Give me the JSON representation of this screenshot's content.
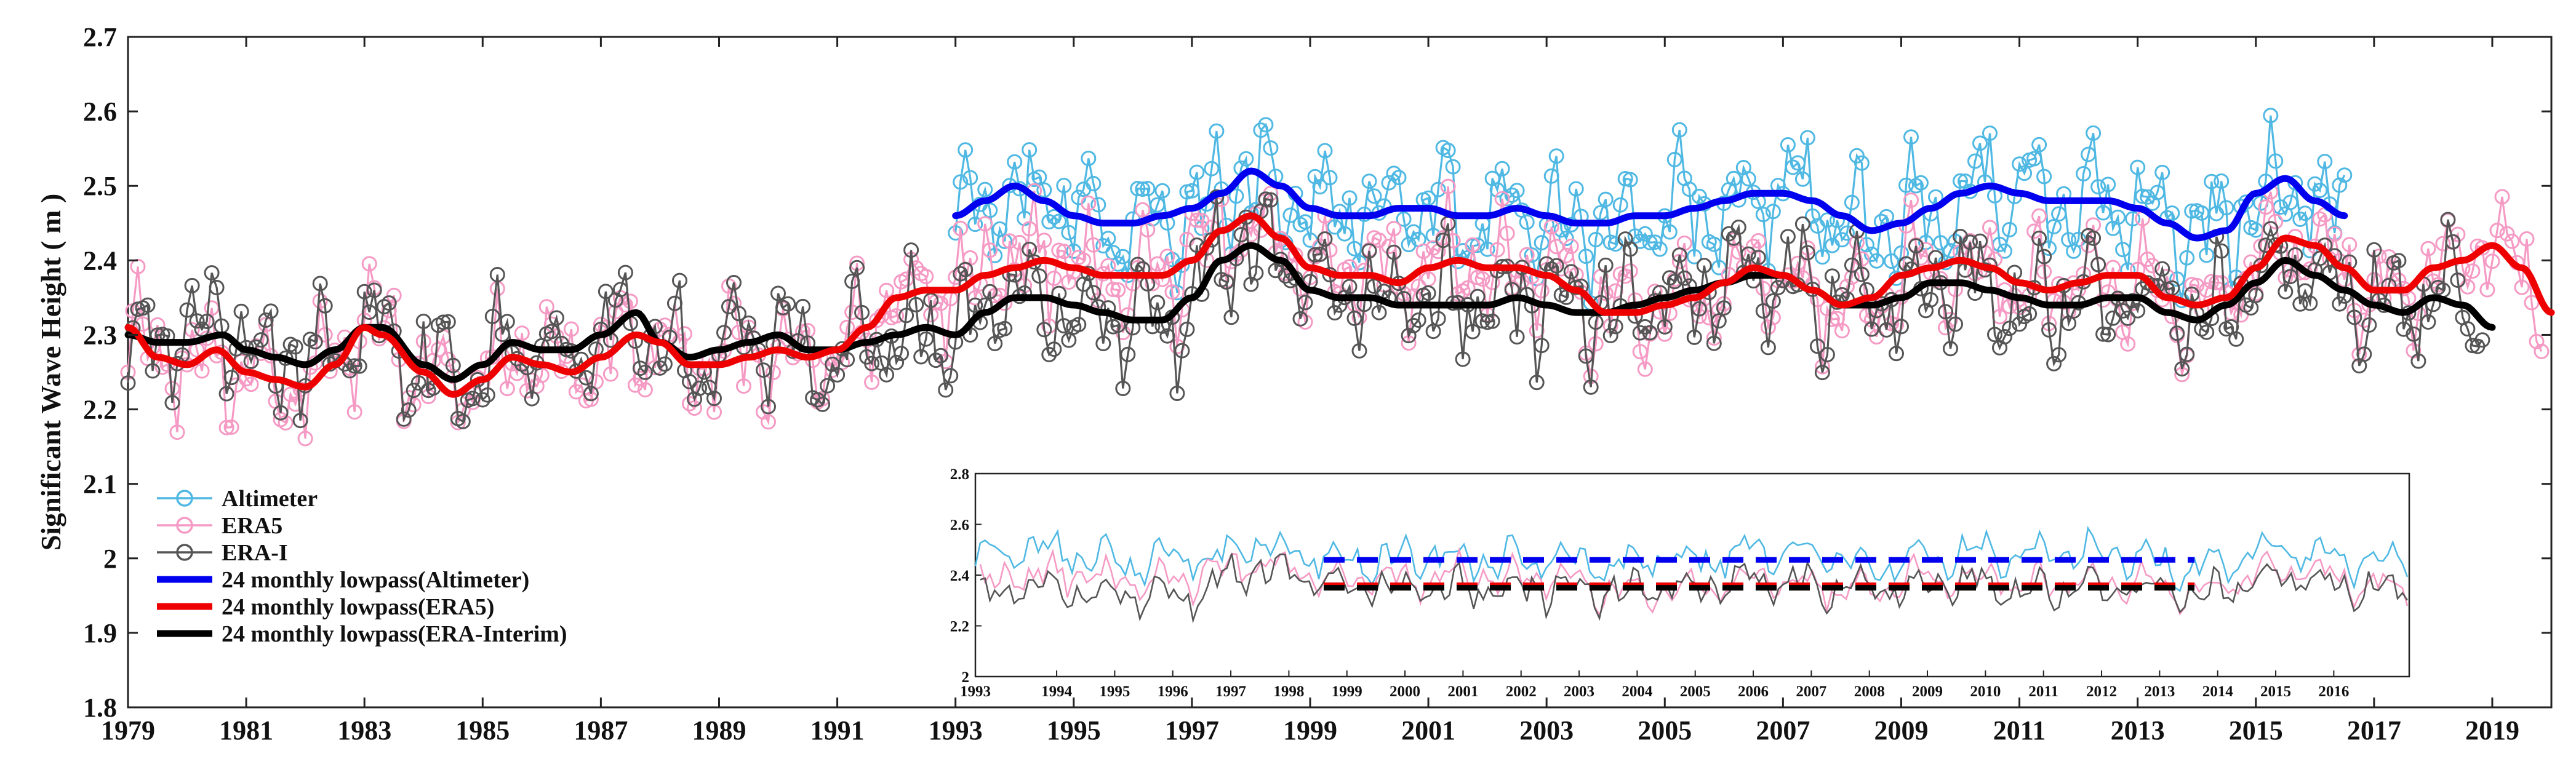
{
  "chart_data": [
    {
      "id": "main",
      "type": "line",
      "title": "",
      "xlabel": "",
      "ylabel": "Significant Wave Height ( m )",
      "xlim": [
        1979,
        2020
      ],
      "ylim": [
        1.8,
        2.7
      ],
      "grid": false,
      "legend_position": "bottom-left",
      "x_ticks": [
        "1979",
        "1981",
        "1983",
        "1985",
        "1987",
        "1989",
        "1991",
        "1993",
        "1995",
        "1997",
        "1999",
        "2001",
        "2003",
        "2005",
        "2007",
        "2009",
        "2011",
        "2013",
        "2015",
        "2017",
        "2019"
      ],
      "y_ticks": [
        "1.8",
        "1.9",
        "2",
        "2.1",
        "2.2",
        "2.3",
        "2.4",
        "2.5",
        "2.6",
        "2.7"
      ],
      "legend": [
        {
          "label": "Altimeter",
          "color": "#4fb8e3",
          "style": "line-marker"
        },
        {
          "label": "ERA5",
          "color": "#f59ac4",
          "style": "line-marker"
        },
        {
          "label": "ERA-I",
          "color": "#555555",
          "style": "line-marker"
        },
        {
          "label": "24 monthly lowpass(Altimeter)",
          "color": "#0000ee",
          "style": "thick-line"
        },
        {
          "label": "24 monthly lowpass(ERA5)",
          "color": "#ee0000",
          "style": "thick-line"
        },
        {
          "label": "24 monthly lowpass(ERA-Interim)",
          "color": "#000000",
          "style": "thick-line"
        }
      ],
      "series": [
        {
          "name": "24 monthly lowpass(ERA-Interim)",
          "color": "#000000",
          "kind": "smooth",
          "x": [
            1979,
            1979.5,
            1980,
            1980.6,
            1981,
            1981.5,
            1982,
            1982.5,
            1983,
            1983.3,
            1984,
            1984.5,
            1985,
            1985.5,
            1986,
            1986.5,
            1987,
            1987.6,
            1988,
            1988.5,
            1989,
            1989.5,
            1990,
            1990.5,
            1991,
            1991.5,
            1992,
            1992.5,
            1993,
            1993.5,
            1994,
            1994.5,
            1995,
            1995.5,
            1996,
            1996.5,
            1997,
            1997.5,
            1998,
            1998.5,
            1999,
            1999.5,
            2000,
            2000.5,
            2001,
            2001.5,
            2002,
            2002.5,
            2003,
            2003.5,
            2004,
            2004.5,
            2005,
            2005.5,
            2006,
            2006.5,
            2007,
            2007.5,
            2008,
            2008.5,
            2009,
            2009.5,
            2010,
            2010.5,
            2011,
            2011.5,
            2012,
            2012.5,
            2013,
            2013.5,
            2014,
            2014.5,
            2015,
            2015.5,
            2016,
            2016.5,
            2017,
            2017.5,
            2018,
            2018.5,
            2019
          ],
          "y": [
            2.3,
            2.29,
            2.29,
            2.3,
            2.28,
            2.27,
            2.26,
            2.28,
            2.31,
            2.31,
            2.26,
            2.24,
            2.26,
            2.29,
            2.28,
            2.28,
            2.3,
            2.33,
            2.29,
            2.27,
            2.28,
            2.29,
            2.3,
            2.28,
            2.28,
            2.29,
            2.3,
            2.31,
            2.3,
            2.33,
            2.35,
            2.35,
            2.34,
            2.33,
            2.32,
            2.32,
            2.35,
            2.4,
            2.42,
            2.4,
            2.36,
            2.35,
            2.35,
            2.34,
            2.34,
            2.34,
            2.34,
            2.35,
            2.34,
            2.33,
            2.33,
            2.34,
            2.35,
            2.36,
            2.37,
            2.38,
            2.38,
            2.36,
            2.34,
            2.34,
            2.35,
            2.37,
            2.37,
            2.36,
            2.35,
            2.34,
            2.34,
            2.35,
            2.35,
            2.33,
            2.32,
            2.34,
            2.37,
            2.4,
            2.38,
            2.36,
            2.34,
            2.33,
            2.35,
            2.34,
            2.31
          ]
        },
        {
          "name": "24 monthly lowpass(ERA5)",
          "color": "#ee0000",
          "kind": "smooth",
          "x": [
            1979,
            1979.5,
            1980,
            1980.5,
            1981,
            1981.5,
            1982,
            1982.5,
            1983,
            1983.3,
            1984,
            1984.5,
            1985,
            1985.5,
            1986,
            1986.5,
            1987,
            1987.6,
            1988,
            1988.5,
            1989,
            1989.5,
            1990,
            1990.5,
            1991,
            1991.5,
            1992,
            1992.5,
            1993,
            1993.5,
            1994,
            1994.5,
            1995,
            1995.5,
            1996,
            1996.5,
            1997,
            1997.5,
            1998,
            1998.5,
            1999,
            1999.5,
            2000,
            2000.5,
            2001,
            2001.5,
            2002,
            2002.5,
            2003,
            2003.5,
            2004,
            2004.5,
            2005,
            2005.5,
            2006,
            2006.5,
            2007,
            2007.5,
            2008,
            2008.5,
            2009,
            2009.5,
            2010,
            2010.5,
            2011,
            2011.5,
            2012,
            2012.5,
            2013,
            2013.5,
            2014,
            2014.5,
            2015,
            2015.5,
            2016,
            2016.5,
            2017,
            2017.5,
            2018,
            2018.5,
            2019,
            2019.5,
            2020
          ],
          "y": [
            2.31,
            2.27,
            2.26,
            2.28,
            2.25,
            2.24,
            2.23,
            2.26,
            2.31,
            2.3,
            2.25,
            2.22,
            2.24,
            2.27,
            2.26,
            2.25,
            2.27,
            2.3,
            2.29,
            2.26,
            2.26,
            2.27,
            2.28,
            2.27,
            2.28,
            2.31,
            2.35,
            2.36,
            2.36,
            2.38,
            2.39,
            2.4,
            2.39,
            2.38,
            2.38,
            2.38,
            2.4,
            2.44,
            2.46,
            2.43,
            2.39,
            2.38,
            2.38,
            2.37,
            2.39,
            2.4,
            2.39,
            2.39,
            2.38,
            2.36,
            2.33,
            2.33,
            2.34,
            2.35,
            2.37,
            2.39,
            2.38,
            2.36,
            2.34,
            2.35,
            2.38,
            2.39,
            2.4,
            2.39,
            2.37,
            2.36,
            2.37,
            2.38,
            2.38,
            2.35,
            2.34,
            2.35,
            2.39,
            2.43,
            2.42,
            2.39,
            2.36,
            2.36,
            2.39,
            2.4,
            2.42,
            2.39,
            2.33
          ]
        },
        {
          "name": "24 monthly lowpass(Altimeter)",
          "color": "#0000ee",
          "kind": "smooth",
          "x": [
            1993,
            1993.5,
            1994,
            1994.5,
            1995,
            1995.5,
            1996,
            1996.5,
            1997,
            1997.5,
            1998,
            1998.5,
            1999,
            1999.5,
            2000,
            2000.5,
            2001,
            2001.5,
            2002,
            2002.5,
            2003,
            2003.5,
            2004,
            2004.5,
            2005,
            2005.5,
            2006,
            2006.5,
            2007,
            2007.5,
            2008,
            2008.5,
            2009,
            2009.5,
            2010,
            2010.5,
            2011,
            2011.5,
            2012,
            2012.5,
            2013,
            2013.5,
            2014,
            2014.5,
            2015,
            2015.5,
            2016,
            2016.5
          ],
          "y": [
            2.46,
            2.48,
            2.5,
            2.48,
            2.46,
            2.45,
            2.45,
            2.46,
            2.47,
            2.49,
            2.52,
            2.5,
            2.47,
            2.46,
            2.46,
            2.47,
            2.47,
            2.46,
            2.46,
            2.47,
            2.46,
            2.45,
            2.45,
            2.46,
            2.46,
            2.47,
            2.48,
            2.49,
            2.49,
            2.48,
            2.46,
            2.44,
            2.45,
            2.47,
            2.49,
            2.5,
            2.49,
            2.48,
            2.48,
            2.48,
            2.47,
            2.45,
            2.43,
            2.44,
            2.49,
            2.51,
            2.48,
            2.46
          ]
        }
      ],
      "raw_series_note": "Monthly Altimeter (1993-2016), ERA5 (1979-2019) and ERA-I (1979-2018) series drawn with circle markers; values fluctuate around their lowpass curves."
    },
    {
      "id": "inset",
      "type": "line",
      "title": "",
      "ylim": [
        2,
        2.8
      ],
      "y_ticks": [
        "2",
        "2.2",
        "2.4",
        "2.6",
        "2.8"
      ],
      "x_ticks": [
        "1993",
        "1994",
        "1995",
        "1996",
        "1997",
        "1998",
        "1999",
        "2000",
        "2001",
        "2002",
        "2003",
        "2004",
        "2005",
        "2006",
        "2007",
        "2008",
        "2009",
        "2010",
        "2011",
        "2012",
        "2013",
        "2014",
        "2015",
        "2016"
      ],
      "dashed_means": [
        {
          "name": "Altimeter mean",
          "color": "#0000ee",
          "x": [
            1999,
            2014
          ],
          "y": 2.46
        },
        {
          "name": "ERA5 mean",
          "color": "#ee0000",
          "x": [
            1999,
            2014
          ],
          "y": 2.36
        },
        {
          "name": "ERA-Interim mean",
          "color": "#000000",
          "x": [
            1999,
            2014
          ],
          "y": 2.35
        }
      ]
    }
  ]
}
